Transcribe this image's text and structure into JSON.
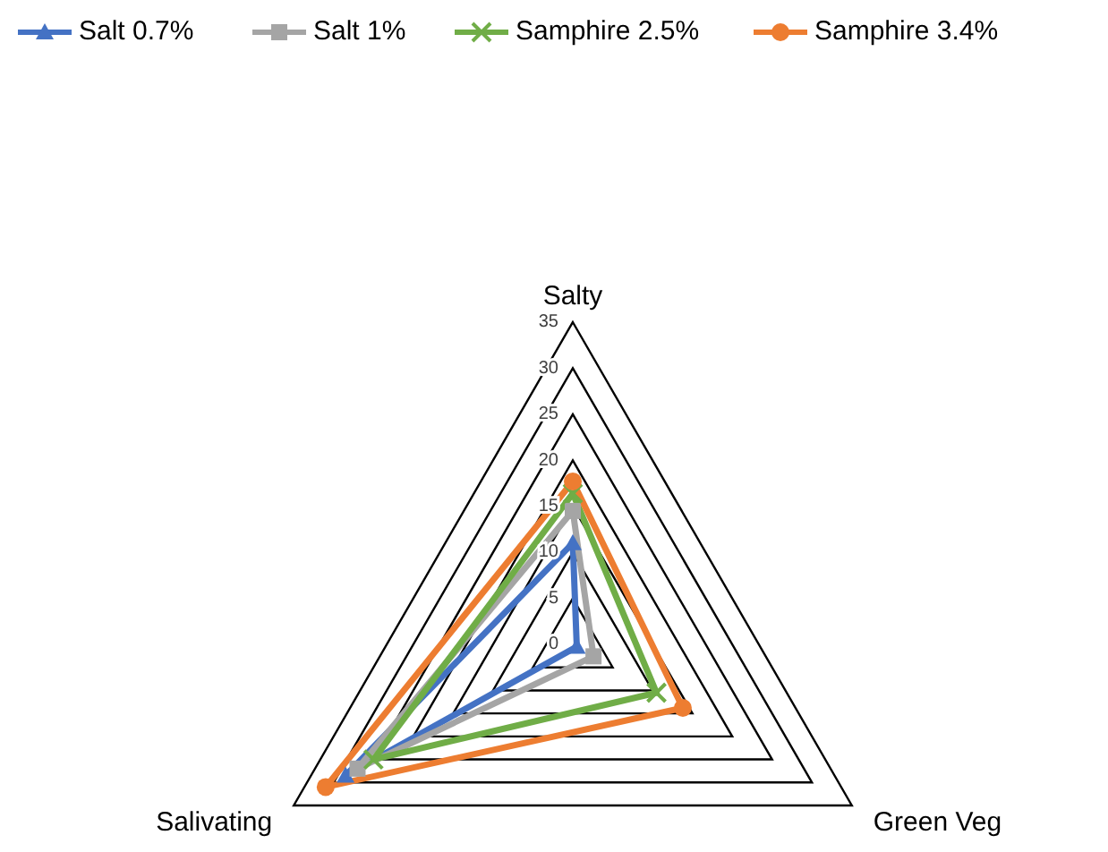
{
  "chart_data": {
    "type": "radar",
    "categories": [
      "Salty",
      "Green Veg",
      "Salivating"
    ],
    "series": [
      {
        "name": "Salt 0.7%",
        "color": "#4472c4",
        "marker": "triangle",
        "values": [
          11,
          0.5,
          28.5
        ]
      },
      {
        "name": "Salt 1%",
        "color": "#a5a5a5",
        "marker": "square",
        "values": [
          14.5,
          2.6,
          27
        ]
      },
      {
        "name": "Samphire 2.5%",
        "color": "#70ad47",
        "marker": "cross",
        "values": [
          16.4,
          10.5,
          25
        ]
      },
      {
        "name": "Samphire 3.4%",
        "color": "#ed7d31",
        "marker": "circle",
        "values": [
          17.7,
          13.8,
          31
        ]
      }
    ],
    "ylim": [
      0,
      35
    ],
    "yticks": [
      0,
      5,
      10,
      15,
      20,
      25,
      30,
      35
    ],
    "grid": true,
    "legend": "top left"
  }
}
